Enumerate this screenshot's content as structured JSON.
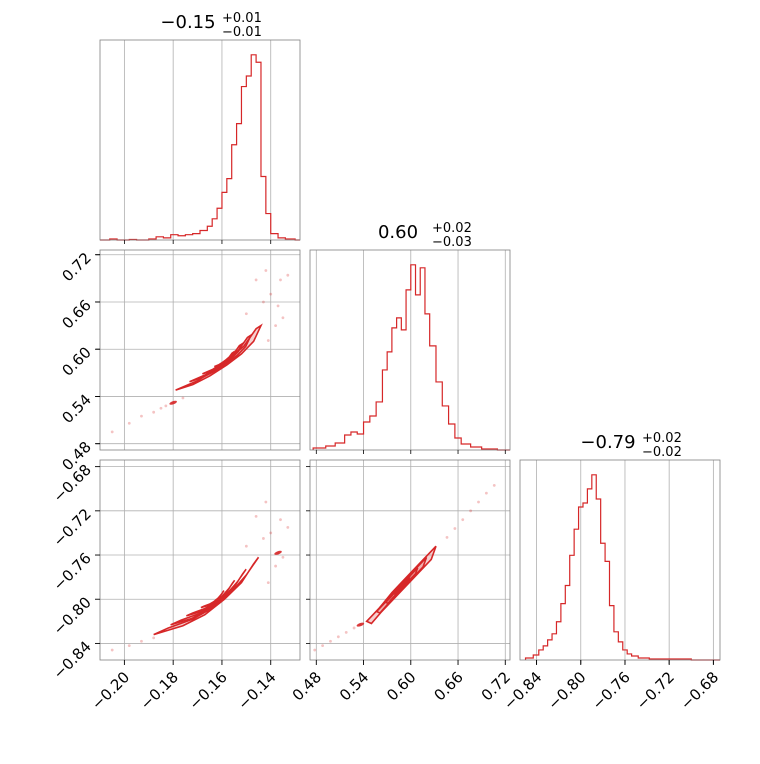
{
  "chart_data": {
    "type": "corner",
    "colors": {
      "accent": "#d62728",
      "grid": "#b0b0b0",
      "frame": "#808080"
    },
    "params": [
      {
        "title": {
          "main": "−0.15",
          "sup": "+0.01",
          "sub": "−0.01"
        },
        "range": [
          -0.21,
          -0.128
        ],
        "ticks": [
          -0.2,
          -0.18,
          -0.16,
          -0.14
        ],
        "tick_labels": [
          "−0.20",
          "−0.18",
          "−0.16",
          "−0.14"
        ],
        "hist": [
          [
            -0.21,
            0
          ],
          [
            -0.206,
            1
          ],
          [
            -0.203,
            0
          ],
          [
            -0.198,
            0.5
          ],
          [
            -0.195,
            0
          ],
          [
            -0.19,
            1
          ],
          [
            -0.187,
            3
          ],
          [
            -0.184,
            2
          ],
          [
            -0.181,
            5
          ],
          [
            -0.178,
            4
          ],
          [
            -0.175,
            5
          ],
          [
            -0.172,
            6
          ],
          [
            -0.169,
            9
          ],
          [
            -0.166,
            13
          ],
          [
            -0.164,
            20
          ],
          [
            -0.162,
            30
          ],
          [
            -0.16,
            45
          ],
          [
            -0.158,
            58
          ],
          [
            -0.156,
            90
          ],
          [
            -0.154,
            110
          ],
          [
            -0.152,
            145
          ],
          [
            -0.15,
            155
          ],
          [
            -0.148,
            175
          ],
          [
            -0.146,
            168
          ],
          [
            -0.144,
            60
          ],
          [
            -0.142,
            25
          ],
          [
            -0.14,
            6
          ],
          [
            -0.137,
            2
          ],
          [
            -0.134,
            1
          ],
          [
            -0.13,
            0
          ]
        ]
      },
      {
        "title": {
          "main": "0.60",
          "sup": "+0.02",
          "sub": "−0.03"
        },
        "range": [
          0.472,
          0.726
        ],
        "ticks": [
          0.48,
          0.54,
          0.6,
          0.66,
          0.72
        ],
        "tick_labels": [
          "0.48",
          "0.54",
          "0.60",
          "0.66",
          "0.72"
        ],
        "hist": [
          [
            0.476,
            2
          ],
          [
            0.492,
            4
          ],
          [
            0.504,
            7
          ],
          [
            0.516,
            15
          ],
          [
            0.524,
            18
          ],
          [
            0.532,
            16
          ],
          [
            0.54,
            28
          ],
          [
            0.548,
            34
          ],
          [
            0.556,
            48
          ],
          [
            0.564,
            80
          ],
          [
            0.57,
            98
          ],
          [
            0.576,
            122
          ],
          [
            0.582,
            132
          ],
          [
            0.588,
            120
          ],
          [
            0.594,
            160
          ],
          [
            0.6,
            185
          ],
          [
            0.606,
            155
          ],
          [
            0.612,
            182
          ],
          [
            0.618,
            136
          ],
          [
            0.624,
            104
          ],
          [
            0.632,
            68
          ],
          [
            0.64,
            44
          ],
          [
            0.648,
            26
          ],
          [
            0.656,
            12
          ],
          [
            0.664,
            6
          ],
          [
            0.676,
            3
          ],
          [
            0.69,
            1
          ],
          [
            0.71,
            0
          ]
        ]
      },
      {
        "title": {
          "main": "−0.79",
          "sup": "+0.02",
          "sub": "−0.02"
        },
        "range": [
          -0.855,
          -0.674
        ],
        "ticks": [
          -0.84,
          -0.8,
          -0.76,
          -0.72,
          -0.68
        ],
        "tick_labels": [
          "−0.84",
          "−0.80",
          "−0.76",
          "−0.72",
          "−0.68"
        ],
        "hist": [
          [
            -0.85,
            2
          ],
          [
            -0.843,
            5
          ],
          [
            -0.838,
            10
          ],
          [
            -0.834,
            14
          ],
          [
            -0.83,
            20
          ],
          [
            -0.826,
            26
          ],
          [
            -0.822,
            38
          ],
          [
            -0.818,
            56
          ],
          [
            -0.814,
            74
          ],
          [
            -0.81,
            104
          ],
          [
            -0.806,
            130
          ],
          [
            -0.802,
            152
          ],
          [
            -0.798,
            156
          ],
          [
            -0.794,
            170
          ],
          [
            -0.79,
            184
          ],
          [
            -0.786,
            160
          ],
          [
            -0.782,
            116
          ],
          [
            -0.778,
            98
          ],
          [
            -0.774,
            54
          ],
          [
            -0.77,
            28
          ],
          [
            -0.766,
            18
          ],
          [
            -0.762,
            10
          ],
          [
            -0.758,
            6
          ],
          [
            -0.754,
            4
          ],
          [
            -0.748,
            2
          ],
          [
            -0.738,
            1
          ],
          [
            -0.725,
            1
          ],
          [
            -0.7,
            0
          ]
        ]
      }
    ],
    "panels": {
      "p10": {
        "x": 0,
        "y": 1,
        "contour_points": [
          [
            -0.172,
            0.555
          ],
          [
            -0.165,
            0.566
          ],
          [
            -0.158,
            0.58
          ],
          [
            -0.152,
            0.594
          ],
          [
            -0.147,
            0.61
          ],
          [
            -0.144,
            0.63
          ],
          [
            -0.146,
            0.626
          ],
          [
            -0.151,
            0.604
          ],
          [
            -0.157,
            0.588
          ],
          [
            -0.163,
            0.574
          ],
          [
            -0.17,
            0.56
          ],
          [
            -0.179,
            0.548
          ]
        ],
        "scatter": [
          [
            -0.205,
            0.495
          ],
          [
            -0.198,
            0.506
          ],
          [
            -0.193,
            0.515
          ],
          [
            -0.188,
            0.52
          ],
          [
            -0.185,
            0.525
          ],
          [
            -0.183,
            0.528
          ],
          [
            -0.18,
            0.532
          ],
          [
            -0.176,
            0.538
          ],
          [
            -0.143,
            0.66
          ],
          [
            -0.14,
            0.67
          ],
          [
            -0.137,
            0.655
          ],
          [
            -0.136,
            0.688
          ],
          [
            -0.146,
            0.688
          ],
          [
            -0.142,
            0.7
          ],
          [
            -0.133,
            0.694
          ],
          [
            -0.15,
            0.645
          ],
          [
            -0.138,
            0.63
          ],
          [
            -0.135,
            0.64
          ],
          [
            -0.141,
            0.611
          ]
        ]
      },
      "p20": {
        "x": 0,
        "y": 2,
        "contour_points": [
          [
            -0.182,
            -0.826
          ],
          [
            -0.172,
            -0.818
          ],
          [
            -0.164,
            -0.808
          ],
          [
            -0.156,
            -0.793
          ],
          [
            -0.15,
            -0.778
          ],
          [
            -0.145,
            -0.762
          ],
          [
            -0.147,
            -0.768
          ],
          [
            -0.152,
            -0.785
          ],
          [
            -0.159,
            -0.8
          ],
          [
            -0.167,
            -0.814
          ],
          [
            -0.176,
            -0.824
          ],
          [
            -0.188,
            -0.832
          ]
        ],
        "scatter": [
          [
            -0.205,
            -0.846
          ],
          [
            -0.198,
            -0.842
          ],
          [
            -0.193,
            -0.838
          ],
          [
            -0.188,
            -0.835
          ],
          [
            -0.143,
            -0.745
          ],
          [
            -0.14,
            -0.74
          ],
          [
            -0.137,
            -0.758
          ],
          [
            -0.136,
            -0.728
          ],
          [
            -0.146,
            -0.725
          ],
          [
            -0.142,
            -0.712
          ],
          [
            -0.133,
            -0.735
          ],
          [
            -0.15,
            -0.752
          ],
          [
            -0.138,
            -0.77
          ],
          [
            -0.135,
            -0.762
          ],
          [
            -0.141,
            -0.785
          ]
        ]
      },
      "p21": {
        "x": 1,
        "y": 2,
        "contour_points": [
          [
            0.544,
            -0.82
          ],
          [
            0.56,
            -0.808
          ],
          [
            0.576,
            -0.794
          ],
          [
            0.592,
            -0.782
          ],
          [
            0.608,
            -0.77
          ],
          [
            0.624,
            -0.758
          ],
          [
            0.632,
            -0.752
          ],
          [
            0.626,
            -0.764
          ],
          [
            0.61,
            -0.776
          ],
          [
            0.594,
            -0.788
          ],
          [
            0.578,
            -0.8
          ],
          [
            0.562,
            -0.812
          ],
          [
            0.55,
            -0.822
          ]
        ],
        "scatter": [
          [
            0.478,
            -0.846
          ],
          [
            0.488,
            -0.842
          ],
          [
            0.498,
            -0.838
          ],
          [
            0.508,
            -0.834
          ],
          [
            0.518,
            -0.83
          ],
          [
            0.528,
            -0.826
          ],
          [
            0.536,
            -0.823
          ],
          [
            0.646,
            -0.744
          ],
          [
            0.656,
            -0.736
          ],
          [
            0.666,
            -0.728
          ],
          [
            0.676,
            -0.72
          ],
          [
            0.686,
            -0.712
          ],
          [
            0.696,
            -0.704
          ],
          [
            0.706,
            -0.697
          ]
        ]
      }
    }
  }
}
